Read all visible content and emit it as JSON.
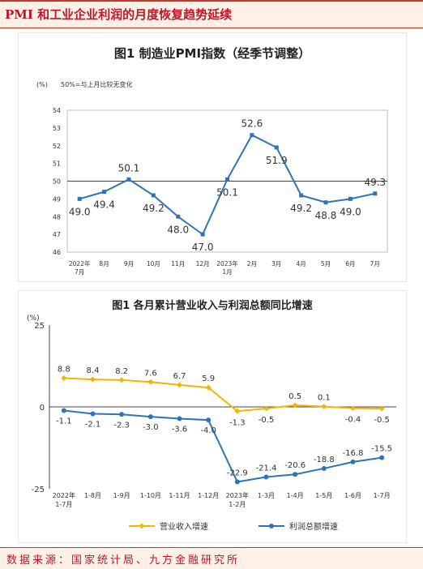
{
  "header": {
    "title": "PMI 和工业企业利润的月度恢复趋势延续"
  },
  "footer": {
    "source": "数据来源：国家统计局、九方金融研究所"
  },
  "chart_data": [
    {
      "type": "line",
      "title": "图1  制造业PMI指数（经季节调整）",
      "yunit": "(%)",
      "annotation": "50%=与上月比较无变化",
      "categories": [
        [
          "2022年",
          "7月"
        ],
        [
          "8月"
        ],
        [
          "9月"
        ],
        [
          "10月"
        ],
        [
          "11月"
        ],
        [
          "12月"
        ],
        [
          "2023年",
          "1月"
        ],
        [
          "2月"
        ],
        [
          "3月"
        ],
        [
          "4月"
        ],
        [
          "5月"
        ],
        [
          "6月"
        ],
        [
          "7月"
        ]
      ],
      "series": [
        {
          "values": [
            49.0,
            49.4,
            50.1,
            49.2,
            48.0,
            47.0,
            50.1,
            52.6,
            51.9,
            49.2,
            48.8,
            49.0,
            49.3
          ],
          "labels": [
            "49.0",
            "49.4",
            "50.1",
            "49.2",
            "48.0",
            "47.0",
            "50.1",
            "52.6",
            "51.9",
            "49.2",
            "48.8",
            "49.0",
            "49.3"
          ]
        }
      ],
      "yticks": [
        46,
        47,
        48,
        49,
        50,
        51,
        52,
        53,
        54
      ],
      "ylim": [
        46,
        54
      ],
      "reference_line": 50,
      "colors": {
        "line": "#2e75b6"
      }
    },
    {
      "type": "line",
      "title": "图1  各月累计营业收入与利润总额同比增速",
      "yunit": "(%)",
      "categories": [
        [
          "2022年",
          "1-7月"
        ],
        [
          "1-8月"
        ],
        [
          "1-9月"
        ],
        [
          "1-10月"
        ],
        [
          "1-11月"
        ],
        [
          "1-12月"
        ],
        [
          "2023年",
          "1-2月"
        ],
        [
          "1-3月"
        ],
        [
          "1-4月"
        ],
        [
          "1-5月"
        ],
        [
          "1-6月"
        ],
        [
          "1-7月"
        ]
      ],
      "series": [
        {
          "name": "营业收入增速",
          "color": "#f4b400",
          "values": [
            8.8,
            8.4,
            8.2,
            7.6,
            6.7,
            5.9,
            -1.3,
            -0.5,
            0.5,
            0.1,
            -0.4,
            -0.5
          ],
          "labels": [
            "8.8",
            "8.4",
            "8.2",
            "7.6",
            "6.7",
            "5.9",
            "-1.3",
            "-0.5",
            "0.5",
            "0.1",
            "-0.4",
            "-0.5"
          ]
        },
        {
          "name": "利润总额增速",
          "color": "#2e75b6",
          "values": [
            -1.1,
            -2.1,
            -2.3,
            -3.0,
            -3.6,
            -4.0,
            -22.9,
            -21.4,
            -20.6,
            -18.8,
            -16.8,
            -15.5
          ],
          "labels": [
            "-1.1",
            "-2.1",
            "-2.3",
            "-3.0",
            "-3.6",
            "-4.0",
            "-22.9",
            "-21.4",
            "-20.6",
            "-18.8",
            "-16.8",
            "-15.5"
          ]
        }
      ],
      "yticks": [
        -25,
        0,
        25
      ],
      "ytick_labels": [
        "-25",
        "0",
        "25"
      ],
      "ylim": [
        -25,
        25
      ],
      "legend": "bottom"
    }
  ]
}
